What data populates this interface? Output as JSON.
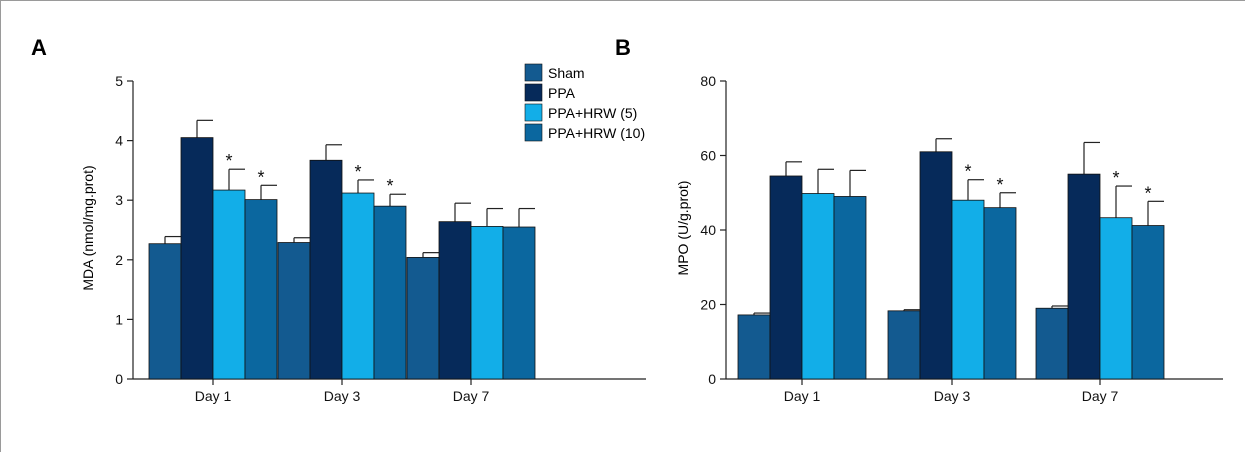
{
  "colors": {
    "sham": "#135a90",
    "ppa": "#062a5a",
    "hrw5": "#12aee8",
    "hrw10": "#0b679f",
    "axis": "#222222",
    "panel_label": "#0b4f8a"
  },
  "legend": {
    "entries": [
      "Sham",
      "PPA",
      "PPA+HRW (5)",
      "PPA+HRW (10)"
    ]
  },
  "chart_data": [
    {
      "type": "bar",
      "panel_label": "A",
      "title": "",
      "xlabel": "",
      "ylabel": "MDA (nmol/mg.prot)",
      "ylim": [
        0,
        5
      ],
      "yticks": [
        0,
        1,
        2,
        3,
        4,
        5
      ],
      "categories": [
        "Day 1",
        "Day 3",
        "Day 7"
      ],
      "series": [
        {
          "name": "Sham",
          "values": [
            2.27,
            2.29,
            2.04
          ],
          "errors": [
            0.12,
            0.08,
            0.08
          ],
          "significant": [
            false,
            false,
            false
          ]
        },
        {
          "name": "PPA",
          "values": [
            4.05,
            3.67,
            2.64
          ],
          "errors": [
            0.29,
            0.26,
            0.31
          ],
          "significant": [
            false,
            false,
            false
          ]
        },
        {
          "name": "PPA+HRW (5)",
          "values": [
            3.17,
            3.12,
            2.56
          ],
          "errors": [
            0.35,
            0.22,
            0.3
          ],
          "significant": [
            true,
            true,
            false
          ]
        },
        {
          "name": "PPA+HRW (10)",
          "values": [
            3.01,
            2.9,
            2.55
          ],
          "errors": [
            0.24,
            0.2,
            0.31
          ],
          "significant": [
            true,
            true,
            false
          ]
        }
      ],
      "significance_marker": "*",
      "legend_position": "top-right"
    },
    {
      "type": "bar",
      "panel_label": "B",
      "title": "",
      "xlabel": "",
      "ylabel": "MPO (U/g.prot)",
      "ylim": [
        0,
        80
      ],
      "yticks": [
        0,
        20,
        40,
        60,
        80
      ],
      "categories": [
        "Day 1",
        "Day 3",
        "Day 7"
      ],
      "series": [
        {
          "name": "Sham",
          "values": [
            17.2,
            18.3,
            19.0
          ],
          "errors": [
            0.5,
            0.3,
            0.6
          ],
          "significant": [
            false,
            false,
            false
          ]
        },
        {
          "name": "PPA",
          "values": [
            54.5,
            61.0,
            55.0
          ],
          "errors": [
            3.8,
            3.5,
            8.5
          ],
          "significant": [
            false,
            false,
            false
          ]
        },
        {
          "name": "PPA+HRW (5)",
          "values": [
            49.8,
            48.0,
            43.3
          ],
          "errors": [
            6.5,
            5.5,
            8.5
          ],
          "significant": [
            false,
            true,
            true
          ]
        },
        {
          "name": "PPA+HRW (10)",
          "values": [
            49.0,
            46.0,
            41.2
          ],
          "errors": [
            7.0,
            4.0,
            6.5
          ],
          "significant": [
            false,
            true,
            true
          ]
        }
      ],
      "significance_marker": "*"
    }
  ]
}
